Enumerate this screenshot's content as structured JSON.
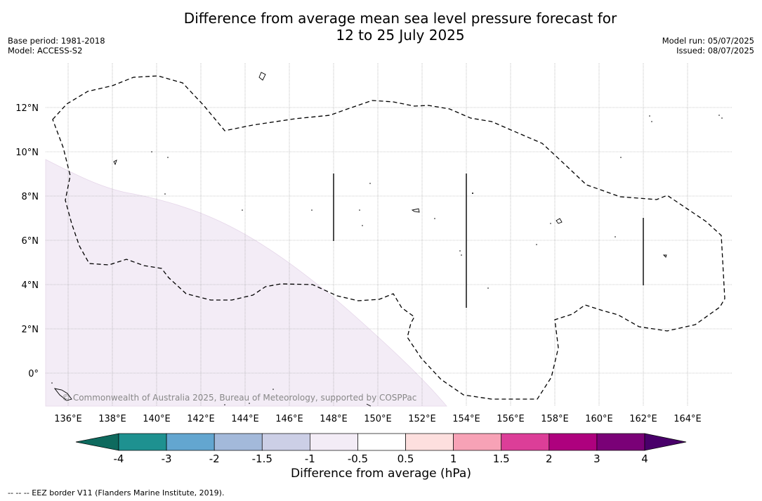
{
  "title": {
    "line1": "Difference from average mean sea level pressure forecast for",
    "line2": "12 to 25 July 2025"
  },
  "meta_left": {
    "base_period": "Base period: 1981-2018",
    "model": "Model: ACCESS-S2"
  },
  "meta_right": {
    "model_run": "Model run: 05/07/2025",
    "issued": "Issued: 08/07/2025"
  },
  "map": {
    "lon_range": [
      135,
      166
    ],
    "lat_range": [
      -1.5,
      14
    ],
    "lon_ticks": [
      "136°E",
      "138°E",
      "140°E",
      "142°E",
      "144°E",
      "146°E",
      "148°E",
      "150°E",
      "152°E",
      "154°E",
      "156°E",
      "158°E",
      "160°E",
      "162°E",
      "164°E"
    ],
    "lat_ticks": [
      "0°",
      "2°N",
      "4°N",
      "6°N",
      "8°N",
      "10°N",
      "12°N"
    ],
    "shaded_region": {
      "level": "-1 to -0.5",
      "color": "#f3ecf6"
    },
    "eez_border_style": "dashed",
    "copyright": "© Commonwealth of Australia 2025, Bureau of Meteorology, supported by COSPPac"
  },
  "colorbar": {
    "label": "Difference from average (hPa)",
    "ticks": [
      "-4",
      "-3",
      "-2",
      "-1.5",
      "-1",
      "-0.5",
      "0.5",
      "1",
      "1.5",
      "2",
      "3",
      "4"
    ],
    "colors": [
      "#0e6a5e",
      "#1e9190",
      "#63a6d0",
      "#a3b9da",
      "#cccfe6",
      "#f3ecf6",
      "#ffffff",
      "#fddfde",
      "#f7a2b6",
      "#dc3e98",
      "#ae017e",
      "#7a0177",
      "#49006a"
    ]
  },
  "footnote": "--  --  -- EEZ border V11 (Flanders Marine Institute, 2019)."
}
